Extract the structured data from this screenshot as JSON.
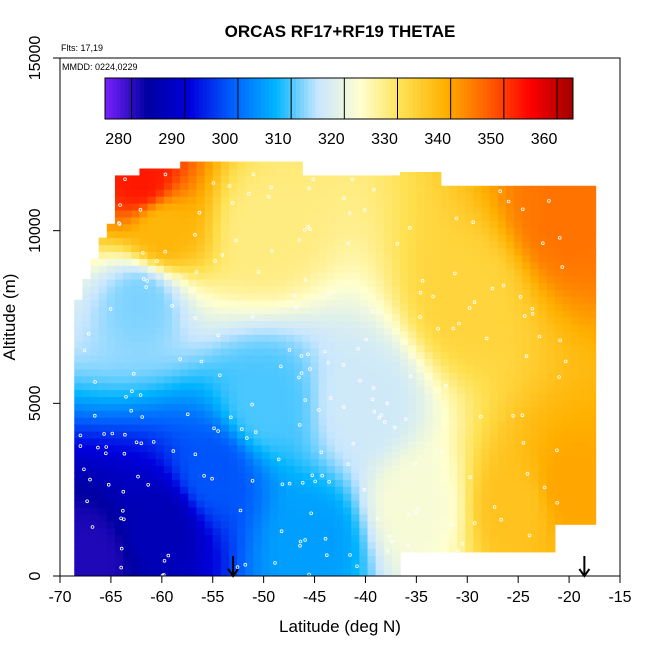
{
  "chart_data": {
    "type": "heatmap",
    "title": "ORCAS RF17+RF19 THETAE",
    "notes": [
      "Flts: 17,19",
      "MMDD: 0224,0229"
    ],
    "xlabel": "Latitude (deg N)",
    "ylabel": "Altitude (m)",
    "xlim": [
      -70,
      -15
    ],
    "ylim": [
      0,
      15000
    ],
    "x_ticks": [
      -70,
      -65,
      -60,
      -55,
      -50,
      -45,
      -40,
      -35,
      -30,
      -25,
      -20,
      -15
    ],
    "y_ticks": [
      0,
      5000,
      10000,
      15000
    ],
    "grid": false,
    "colorbar": {
      "placement": "top-inside",
      "range": [
        275,
        363
      ],
      "ticks": [
        280,
        290,
        300,
        310,
        320,
        330,
        340,
        350,
        360
      ],
      "colors": [
        "#7B20FF",
        "#0000A0",
        "#0000DD",
        "#0060FF",
        "#00B4FF",
        "#C8E6FF",
        "#FFFFD0",
        "#FFE050",
        "#FFB000",
        "#FF6000",
        "#FF0000",
        "#A00000"
      ]
    },
    "field_description": {
      "value_at_lat_alt": [
        {
          "lat": -67,
          "alt": 500,
          "thetae": 281
        },
        {
          "lat": -60,
          "alt": 1500,
          "thetae": 286
        },
        {
          "lat": -55,
          "alt": 3000,
          "thetae": 298
        },
        {
          "lat": -50,
          "alt": 5000,
          "thetae": 310
        },
        {
          "lat": -45,
          "alt": 1000,
          "thetae": 305
        },
        {
          "lat": -40,
          "alt": 5000,
          "thetae": 316
        },
        {
          "lat": -35,
          "alt": 2000,
          "thetae": 322
        },
        {
          "lat": -25,
          "alt": 2000,
          "thetae": 336
        },
        {
          "lat": -20,
          "alt": 2500,
          "thetae": 340
        },
        {
          "lat": -30,
          "alt": 8000,
          "thetae": 333
        },
        {
          "lat": -50,
          "alt": 10000,
          "thetae": 328
        },
        {
          "lat": -62,
          "alt": 11500,
          "thetae": 353
        },
        {
          "lat": -60,
          "alt": 10000,
          "thetae": 338
        },
        {
          "lat": -62,
          "alt": 8000,
          "thetae": 312
        },
        {
          "lat": -20,
          "alt": 10500,
          "thetae": 345
        }
      ]
    },
    "markers": [
      {
        "lat": -53,
        "alt": 0,
        "symbol": "down-arrow"
      },
      {
        "lat": -18.5,
        "alt": 0,
        "symbol": "down-arrow"
      }
    ]
  }
}
